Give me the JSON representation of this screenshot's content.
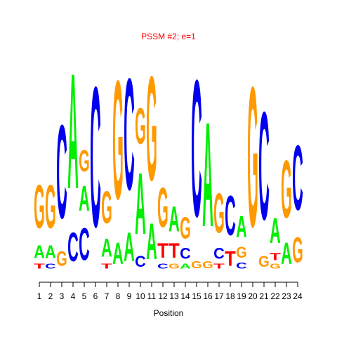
{
  "chart_data": {
    "type": "logo",
    "title": "PSSM #2; e=1",
    "xlabel": "Position",
    "colors": {
      "A": "#00ee00",
      "C": "#0000ee",
      "G": "#ff9900",
      "T": "#ff0000"
    },
    "x": [
      1,
      2,
      3,
      4,
      5,
      6,
      7,
      8,
      9,
      10,
      11,
      12,
      13,
      14,
      15,
      16,
      17,
      18,
      19,
      20,
      21,
      22,
      23,
      24
    ],
    "xlim": [
      1,
      24
    ],
    "xticks": [
      1,
      2,
      3,
      4,
      5,
      6,
      7,
      8,
      9,
      10,
      11,
      12,
      13,
      14,
      15,
      16,
      17,
      18,
      19,
      20,
      21,
      22,
      23,
      24
    ],
    "ylim": [
      0,
      2
    ],
    "columns": [
      {
        "letters": [
          "T",
          "A",
          "G"
        ],
        "values": [
          0.07,
          0.18,
          0.6
        ]
      },
      {
        "letters": [
          "C",
          "A",
          "G"
        ],
        "values": [
          0.07,
          0.18,
          0.6
        ]
      },
      {
        "letters": [
          "G",
          "C"
        ],
        "values": [
          0.2,
          1.3
        ]
      },
      {
        "letters": [
          "C",
          "A"
        ],
        "values": [
          0.4,
          1.6
        ]
      },
      {
        "letters": [
          "C",
          "A",
          "G"
        ],
        "values": [
          0.45,
          0.35,
          0.3
        ]
      },
      {
        "letters": [
          "C"
        ],
        "values": [
          1.95
        ]
      },
      {
        "letters": [
          "T",
          "A",
          "G"
        ],
        "values": [
          0.07,
          0.25,
          0.45
        ]
      },
      {
        "letters": [
          "A",
          "G"
        ],
        "values": [
          0.3,
          1.65
        ]
      },
      {
        "letters": [
          "A",
          "C"
        ],
        "values": [
          0.4,
          1.55
        ]
      },
      {
        "letters": [
          "C",
          "A",
          "G"
        ],
        "values": [
          0.15,
          0.85,
          0.5
        ]
      },
      {
        "letters": [
          "A",
          "G"
        ],
        "values": [
          0.5,
          1.45
        ]
      },
      {
        "letters": [
          "C",
          "T",
          "G"
        ],
        "values": [
          0.07,
          0.2,
          0.55
        ]
      },
      {
        "letters": [
          "G",
          "T",
          "A"
        ],
        "values": [
          0.07,
          0.2,
          0.35
        ]
      },
      {
        "letters": [
          "A",
          "C",
          "G"
        ],
        "values": [
          0.07,
          0.15,
          0.3
        ]
      },
      {
        "letters": [
          "G",
          "C"
        ],
        "values": [
          0.1,
          1.9
        ]
      },
      {
        "letters": [
          "G",
          "A"
        ],
        "values": [
          0.1,
          1.45
        ]
      },
      {
        "letters": [
          "T",
          "C",
          "G"
        ],
        "values": [
          0.07,
          0.15,
          0.55
        ]
      },
      {
        "letters": [
          "T",
          "C"
        ],
        "values": [
          0.2,
          0.55
        ]
      },
      {
        "letters": [
          "C",
          "G",
          "A"
        ],
        "values": [
          0.08,
          0.15,
          0.3
        ]
      },
      {
        "letters": [
          "G"
        ],
        "values": [
          1.95
        ]
      },
      {
        "letters": [
          "G",
          "C"
        ],
        "values": [
          0.15,
          1.5
        ]
      },
      {
        "letters": [
          "G",
          "T",
          "A"
        ],
        "values": [
          0.07,
          0.1,
          0.35
        ]
      },
      {
        "letters": [
          "A",
          "G"
        ],
        "values": [
          0.3,
          0.8
        ]
      },
      {
        "letters": [
          "G",
          "C"
        ],
        "values": [
          0.35,
          0.9
        ]
      }
    ]
  }
}
